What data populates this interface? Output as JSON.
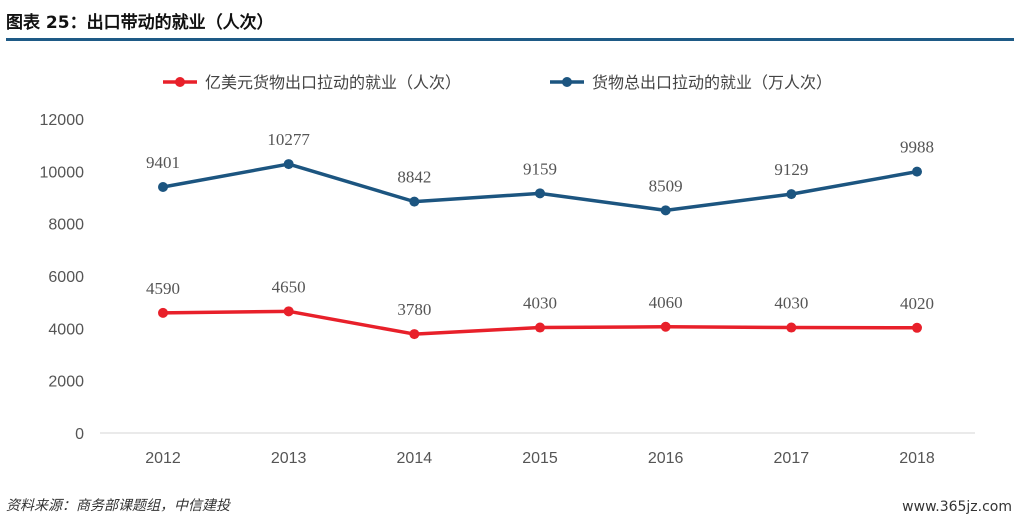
{
  "figure_title": "图表 25：出口带动的就业（人次）",
  "source": "资料来源：商务部课题组，中信建投",
  "watermark": "www.365jz.com",
  "chart_data": {
    "type": "line",
    "title": "",
    "xlabel": "",
    "ylabel": "",
    "categories": [
      "2012",
      "2013",
      "2014",
      "2015",
      "2016",
      "2017",
      "2018"
    ],
    "ylim": [
      0,
      12000
    ],
    "yticks": [
      0,
      2000,
      4000,
      6000,
      8000,
      10000,
      12000
    ],
    "grid": false,
    "legend_position": "top",
    "series": [
      {
        "name": "亿美元货物出口拉动的就业（人次）",
        "color": "#e8202a",
        "values": [
          4590,
          4650,
          3780,
          4030,
          4060,
          4030,
          4020
        ]
      },
      {
        "name": "货物总出口拉动的就业（万人次）",
        "color": "#1c5580",
        "values": [
          9401,
          10277,
          8842,
          9159,
          8509,
          9129,
          9988
        ]
      }
    ]
  }
}
